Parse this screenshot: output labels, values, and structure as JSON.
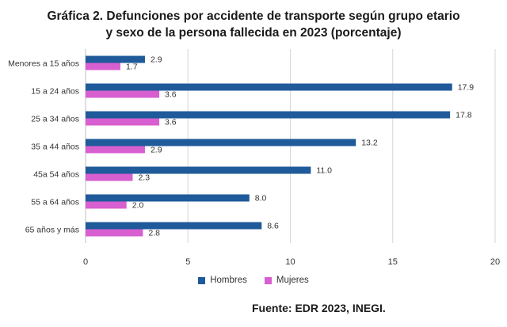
{
  "title_line1": "Gráfica 2. Defunciones por accidente de transporte según grupo etario",
  "title_line2": "y sexo de la persona fallecida en 2023 (porcentaje)",
  "source": "Fuente: EDR 2023, INEGI.",
  "colors": {
    "hombres": "#1F5A9A",
    "mujeres": "#D85FD0",
    "grid": "#d6d6d6",
    "axis": "#bfbfbf"
  },
  "chart_data": {
    "type": "bar",
    "orientation": "horizontal",
    "title": "Gráfica 2. Defunciones por accidente de transporte según grupo etario y sexo de la persona fallecida en 2023 (porcentaje)",
    "categories": [
      "Menores a 15 años",
      "15 a 24 años",
      "25 a 34 años",
      "35 a 44 años",
      "45a 54 años",
      "55 a 64 años",
      "65 años y más"
    ],
    "series": [
      {
        "name": "Hombres",
        "values": [
          2.9,
          17.9,
          17.8,
          13.2,
          11.0,
          8.0,
          8.6
        ],
        "labels": [
          "2.9",
          "17.9",
          "17.8",
          "13.2",
          "11.0",
          "8.0",
          "8.6"
        ]
      },
      {
        "name": "Mujeres",
        "values": [
          1.7,
          3.6,
          3.6,
          2.9,
          2.3,
          2.0,
          2.8
        ],
        "labels": [
          "1.7",
          "3.6",
          "3.6",
          "2.9",
          "2.3",
          "2.0",
          "2.8"
        ]
      }
    ],
    "xlim": [
      0,
      20
    ],
    "xticks": [
      0,
      5,
      10,
      15,
      20
    ],
    "grid": true,
    "legend": "bottom"
  }
}
